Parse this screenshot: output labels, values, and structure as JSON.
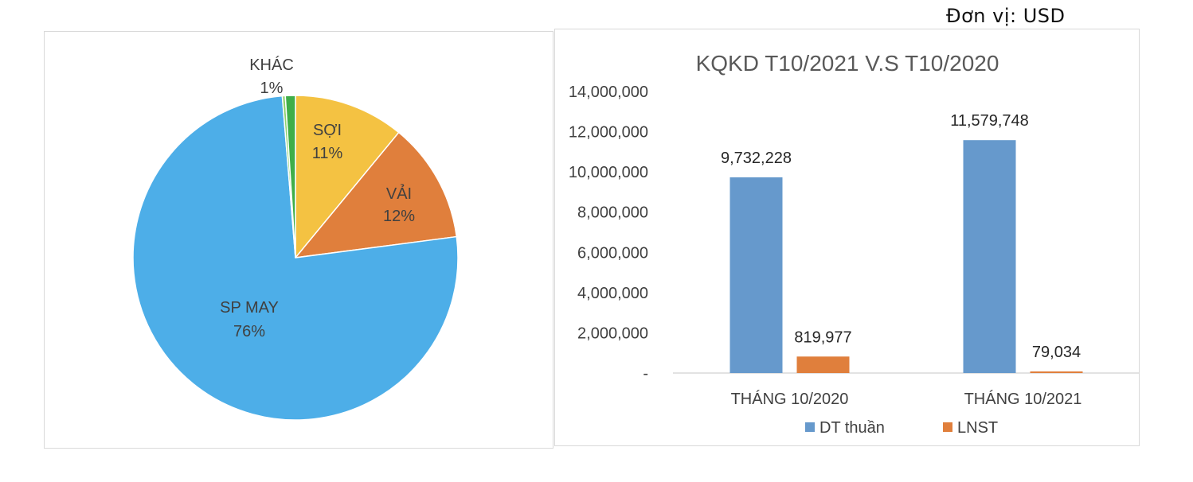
{
  "unit_label": "Đơn vị: USD",
  "chart_data": [
    {
      "type": "pie",
      "title": "",
      "slices": [
        {
          "label": "SỢI",
          "value": 11,
          "display": "11%",
          "color": "#f4c242"
        },
        {
          "label": "VẢI",
          "value": 12,
          "display": "12%",
          "color": "#e07f3c"
        },
        {
          "label": "SP MAY",
          "value": 76,
          "display": "76%",
          "color": "#4daee8"
        },
        {
          "label": "",
          "value": 0.3,
          "display": "",
          "color": "#8fd16e"
        },
        {
          "label": "KHÁC",
          "value": 1,
          "display": "1%",
          "color": "#3fae49"
        }
      ]
    },
    {
      "type": "bar",
      "title": "KQKD T10/2021 V.S T10/2020",
      "categories": [
        "THÁNG 10/2020",
        "THÁNG 10/2021"
      ],
      "series": [
        {
          "name": "DT thuần",
          "values": [
            9732228,
            11579748
          ],
          "labels": [
            "9,732,228",
            "11,579,748"
          ],
          "color": "#6699cc"
        },
        {
          "name": "LNST",
          "values": [
            819977,
            79034
          ],
          "labels": [
            "819,977",
            "79,034"
          ],
          "color": "#e07f3c"
        }
      ],
      "ylim": [
        0,
        14000000
      ],
      "yticks": [
        0,
        2000000,
        4000000,
        6000000,
        8000000,
        10000000,
        12000000,
        14000000
      ],
      "ytick_labels": [
        "-",
        "2,000,000",
        "4,000,000",
        "6,000,000",
        "8,000,000",
        "10,000,000",
        "12,000,000",
        "14,000,000"
      ],
      "xlabel": "",
      "ylabel": "",
      "legend": "bottom",
      "grid": false
    }
  ]
}
